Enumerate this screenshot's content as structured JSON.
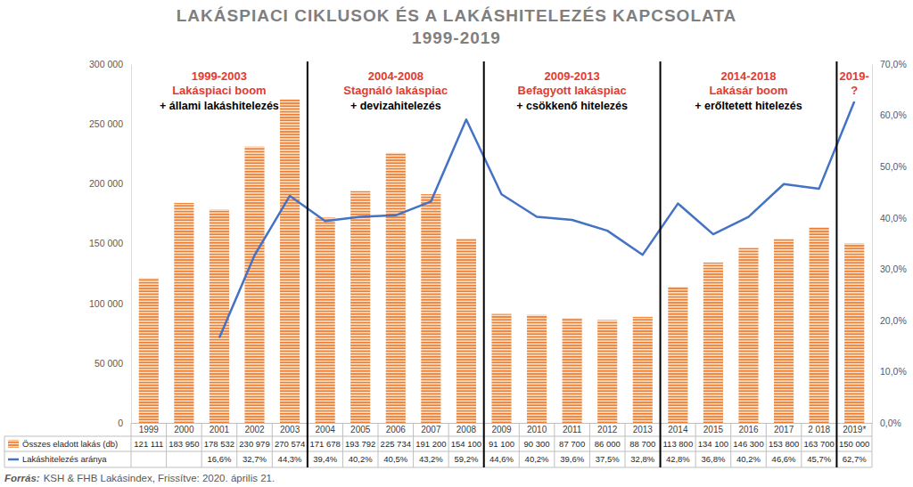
{
  "chart_data": {
    "type": "bar",
    "title": "LAKÁSPIACI CIKLUSOK ÉS A LAKÁSHITELEZÉS KAPCSOLATA",
    "subtitle": "1999-2019",
    "source_label": "Forrás:",
    "source": "KSH & FHB Lakásindex, Frissítve: 2020. április 21.",
    "periods": [
      {
        "years": "1999-2003",
        "title": "Lakáspiaci boom",
        "note": "+ állami lakáshitelezés"
      },
      {
        "years": "2004-2008",
        "title": "Stagnáló lakáspiac",
        "note": "+ devizahitelezés"
      },
      {
        "years": "2009-2013",
        "title": "Befagyott lakáspiac",
        "note": "+ csökkenő hitelezés"
      },
      {
        "years": "2014-2018",
        "title": "Lakásár boom",
        "note": "+ erőltetett hitelezés"
      },
      {
        "years": "2019-",
        "title": "?"
      }
    ],
    "categories": [
      "1999",
      "2000",
      "2001",
      "2002",
      "2003",
      "2004",
      "2005",
      "2006",
      "2007",
      "2008",
      "2009",
      "2010",
      "2011",
      "2012",
      "2013",
      "2014",
      "2015",
      "2016",
      "2017",
      "2 018",
      "2019*"
    ],
    "series": [
      {
        "name": "Összes eladott lakás (db)",
        "type": "bar",
        "color": "#ed7d31",
        "values": [
          121111,
          183950,
          178532,
          230979,
          270574,
          171678,
          193792,
          225734,
          191200,
          154100,
          91100,
          90300,
          87700,
          86000,
          88700,
          113800,
          134100,
          146300,
          153800,
          163700,
          150000
        ],
        "value_labels": [
          "121 111",
          "183 950",
          "178 532",
          "230 979",
          "270 574",
          "171 678",
          "193 792",
          "225 734",
          "191 200",
          "154 100",
          "91 100",
          "90 300",
          "87 700",
          "86 000",
          "88 700",
          "113 800",
          "134 100",
          "146 300",
          "153 800",
          "163 700",
          "150 000"
        ]
      },
      {
        "name": "Lakáshitelezés aránya",
        "type": "line",
        "color": "#4472c4",
        "axis": "y2",
        "values": [
          null,
          null,
          16.6,
          32.7,
          44.3,
          39.4,
          40.2,
          40.5,
          43.2,
          59.2,
          44.6,
          40.2,
          39.6,
          37.5,
          32.8,
          42.8,
          36.8,
          40.2,
          46.6,
          45.7,
          62.7
        ],
        "value_labels": [
          null,
          null,
          "16,6%",
          "32,7%",
          "44,3%",
          "39,4%",
          "40,2%",
          "40,5%",
          "43,2%",
          "59,2%",
          "44,6%",
          "40,2%",
          "39,6%",
          "37,5%",
          "32,8%",
          "42,8%",
          "36,8%",
          "40,2%",
          "46,6%",
          "45,7%",
          "62,7%"
        ]
      }
    ],
    "ylim": [
      0,
      300000
    ],
    "yticks": [
      {
        "value": 0,
        "label": "0"
      },
      {
        "value": 50000,
        "label": "50 000"
      },
      {
        "value": 100000,
        "label": "100 000"
      },
      {
        "value": 150000,
        "label": "150 000"
      },
      {
        "value": 200000,
        "label": "200 000"
      },
      {
        "value": 250000,
        "label": "250 000"
      },
      {
        "value": 300000,
        "label": "300 000"
      }
    ],
    "y2lim": [
      0,
      70
    ],
    "y2ticks": [
      {
        "value": 0,
        "label": "0,0%"
      },
      {
        "value": 10,
        "label": "10,0%"
      },
      {
        "value": 20,
        "label": "20,0%"
      },
      {
        "value": 30,
        "label": "30,0%"
      },
      {
        "value": 40,
        "label": "40,0%"
      },
      {
        "value": 50,
        "label": "50,0%"
      },
      {
        "value": 60,
        "label": "60,0%"
      },
      {
        "value": 70,
        "label": "70,0%"
      }
    ],
    "grid": false,
    "data_labels": true
  }
}
